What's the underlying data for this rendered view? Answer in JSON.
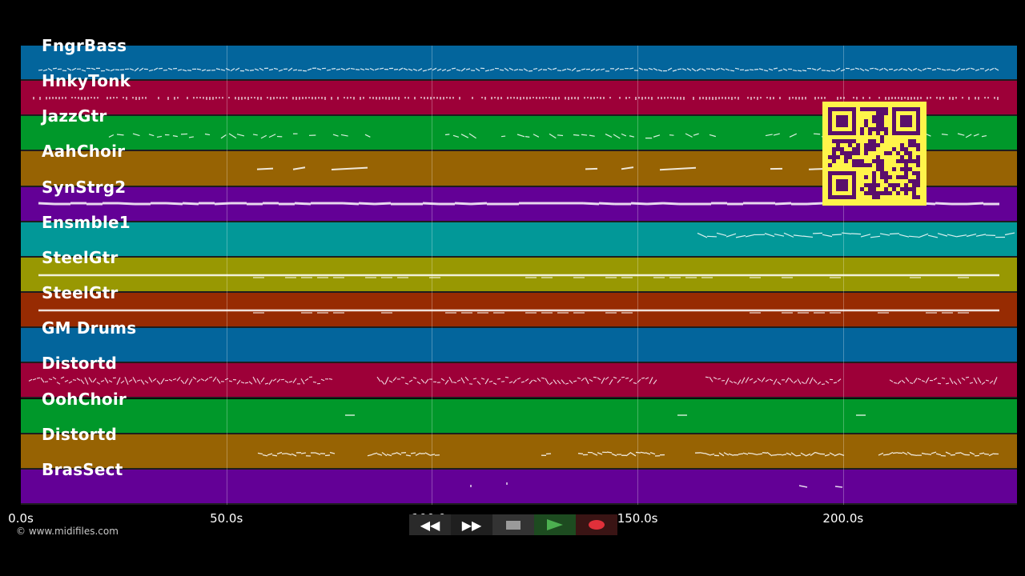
{
  "tracks": [
    {
      "name": "FngrBass",
      "color": "#03659c",
      "pattern": "wavy"
    },
    {
      "name": "HnkyTonk",
      "color": "#9d0038",
      "pattern": "dots"
    },
    {
      "name": "JazzGtr",
      "color": "#00982a",
      "pattern": "sparse"
    },
    {
      "name": "AahChoir",
      "color": "#976303",
      "pattern": "phrases"
    },
    {
      "name": "SynStrg2",
      "color": "#630096",
      "pattern": "thickline"
    },
    {
      "name": "Ensmble1",
      "color": "#029898",
      "pattern": "late"
    },
    {
      "name": "SteelGtr",
      "color": "#989802",
      "pattern": "line"
    },
    {
      "name": "SteelGtr",
      "color": "#972b02",
      "pattern": "line"
    },
    {
      "name": "GM Drums",
      "color": "#03659c",
      "pattern": "none"
    },
    {
      "name": "Distortd",
      "color": "#9d0038",
      "pattern": "clusters"
    },
    {
      "name": "OohChoir",
      "color": "#00982a",
      "pattern": "ticks"
    },
    {
      "name": "Distortd",
      "color": "#976303",
      "pattern": "segments"
    },
    {
      "name": "BrasSect",
      "color": "#630096",
      "pattern": "few"
    }
  ],
  "time_axis": {
    "ticks": [
      "0.0s",
      "50.0s",
      "100.0s",
      "150.0s",
      "200.0s"
    ]
  },
  "credit": "© www.midifiles.com",
  "transport": {
    "rewind_label": "◀◀",
    "forward_label": "▶▶",
    "stop_icon": "stop-icon",
    "play_icon": "play-icon",
    "record_icon": "record-icon",
    "play_color": "#4caf50",
    "record_color": "#e0303a"
  },
  "qr_code": {
    "icon": "qr-code-icon",
    "color": "#5a0f6b"
  }
}
